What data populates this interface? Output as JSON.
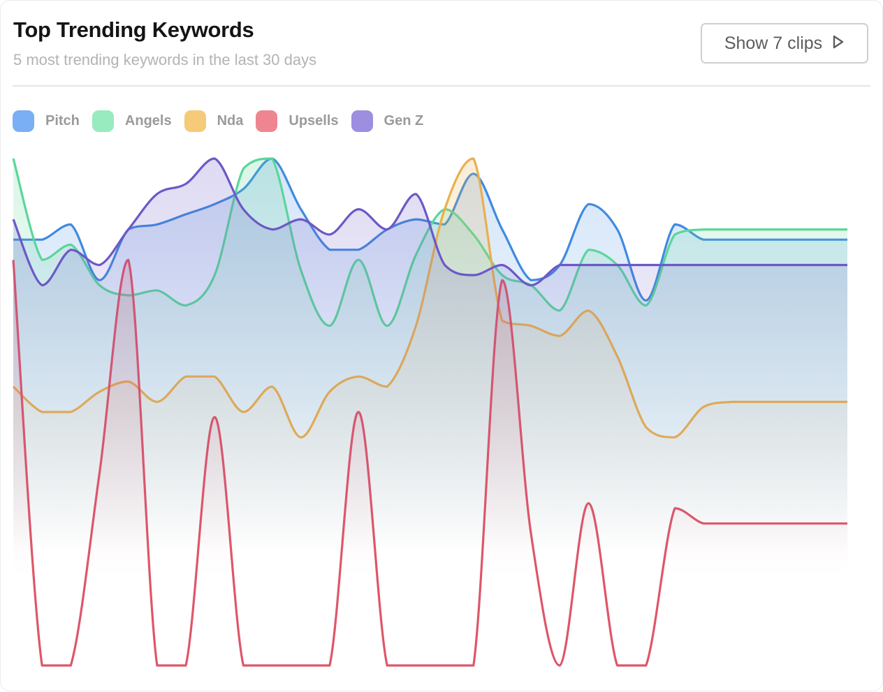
{
  "header": {
    "title": "Top Trending Keywords",
    "subtitle": "5 most trending keywords in the last 30 days",
    "clips_button_label": "Show 7 clips",
    "clips_button_icon": "play-icon"
  },
  "chart_data": {
    "type": "area",
    "title": "Top Trending Keywords",
    "subtitle": "5 most trending keywords in the last 30 days",
    "xlabel": "",
    "ylabel": "",
    "ylim": [
      0,
      100
    ],
    "grid": false,
    "legend_position": "top-left",
    "x": [
      1,
      2,
      3,
      4,
      5,
      6,
      7,
      8,
      9,
      10,
      11,
      12,
      13,
      14,
      15,
      16,
      17,
      18,
      19,
      20,
      21,
      22,
      23,
      24,
      25,
      26,
      27,
      28,
      29,
      30
    ],
    "series": [
      {
        "name": "Pitch",
        "color": "#3f8ae0",
        "legend_color": "#7aaef5",
        "values": [
          84,
          84,
          87,
          76,
          86,
          87,
          89,
          91,
          94,
          100,
          90,
          82,
          82,
          86,
          88,
          87,
          97,
          86,
          76,
          79,
          91,
          86,
          72,
          87,
          84,
          84,
          84,
          84,
          84,
          84
        ]
      },
      {
        "name": "Angels",
        "color": "#5bd69a",
        "legend_color": "#98ebbf",
        "values": [
          100,
          80,
          83,
          75,
          73,
          74,
          71,
          77,
          98,
          100,
          78,
          67,
          80,
          67,
          81,
          90,
          85,
          77,
          75,
          70,
          82,
          79,
          71,
          85,
          86,
          86,
          86,
          86,
          86,
          86
        ]
      },
      {
        "name": "Nda",
        "color": "#e8b04f",
        "legend_color": "#f5ca78",
        "values": [
          55,
          50,
          50,
          54,
          56,
          52,
          57,
          57,
          50,
          55,
          45,
          54,
          57,
          55,
          67,
          90,
          100,
          68,
          67,
          65,
          70,
          61,
          47,
          45,
          51,
          52,
          52,
          52,
          52,
          52
        ]
      },
      {
        "name": "Upsells",
        "color": "#de5669",
        "legend_color": "#f08592",
        "values": [
          80,
          0,
          0,
          38,
          80,
          0,
          0,
          49,
          0,
          0,
          0,
          0,
          50,
          0,
          0,
          0,
          0,
          76,
          26,
          0,
          32,
          0,
          0,
          31,
          28,
          28,
          28,
          28,
          28,
          28
        ]
      },
      {
        "name": "Gen Z",
        "color": "#6c58c6",
        "legend_color": "#9d8ee0",
        "values": [
          88,
          75,
          82,
          79,
          86,
          93,
          95,
          100,
          90,
          86,
          88,
          85,
          90,
          86,
          93,
          79,
          77,
          79,
          75,
          79,
          79,
          79,
          79,
          79,
          79,
          79,
          79,
          79,
          79,
          79
        ]
      }
    ]
  }
}
